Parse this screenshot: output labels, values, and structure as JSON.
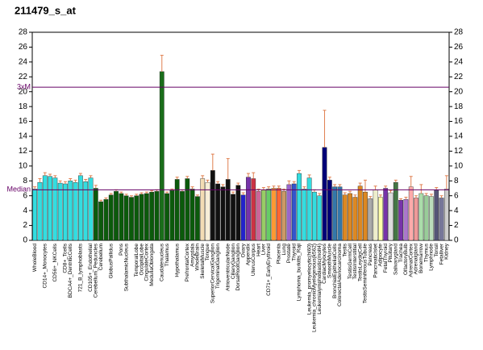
{
  "chart_data": {
    "type": "bar",
    "title": "211479_s_at",
    "categories": [
      "WholeBlood",
      null,
      "CD14+_Monocytes",
      null,
      "CD56+_NKCells",
      null,
      "CD8+_Tcells",
      "BDCA4+_DentriticCells",
      null,
      "721_B_lymphoblasts",
      null,
      "CD105+_Endothelial",
      "Cerebellum_Peduncles",
      "Cerebellum",
      null,
      "GlobusPallidus",
      null,
      "Pons",
      "SubthalamicNucleus",
      null,
      "TemporalLobe",
      "OccipitalLobe",
      "CingulateCortex",
      "MedullaOblongata",
      null,
      "Caudatenucleus",
      "Thalamus",
      null,
      "Hypothalamus",
      null,
      "PrefrontalCortex",
      "Amygdala",
      "WholeBrain",
      "SkeletalMuscle",
      "Tongue",
      "SuperiorCervicalGanglion",
      "TrigeminalGanglion",
      null,
      "AtrioventricularNode",
      "CiliaryGanglion",
      "DorsalRootGanglion",
      "Ovary",
      "Appendix",
      "UterusCorpus",
      "Heart",
      "Liver",
      "CD71+_EarlyErythroid",
      null,
      "Placenta",
      "Lung",
      "Prostate",
      "Thyroid",
      "Lymphoma_burkitts_Raji",
      null,
      "Leukemia_promyelocytic(hl60)",
      "Leukemia_chronicMyelogenous(k562)",
      "Leukemialymphoblastic(molt4)",
      "CardiacMyocytes",
      "SmoothMuscle",
      "BronchialEpithelialCells",
      "ColorectalAdenocarcinoma",
      "Testis",
      "TestisGermCell",
      "TestisInterstitial",
      "TestisLeydigCell",
      "TestisSeminiferousTubule",
      "Pancreas",
      "PancreaticIslet",
      "Adipocyte",
      "FetalThyroid",
      "Pituitary",
      "Salivarygland",
      "Trachea",
      "OlfactoryBulb",
      "AdrenalCortex",
      "Adrenalgland",
      "Bonemarrow",
      "Thymus",
      "Lymphnode",
      "Tonsil",
      "Fetalliver",
      "Kidney"
    ],
    "values": [
      6.9,
      7.8,
      8.7,
      8.6,
      8.4,
      7.7,
      7.6,
      8.0,
      7.8,
      8.7,
      7.9,
      8.4,
      7.0,
      5.2,
      5.5,
      6.1,
      6.6,
      6.3,
      6.0,
      5.8,
      6.0,
      6.2,
      6.3,
      6.5,
      6.6,
      22.7,
      6.3,
      6.7,
      8.2,
      6.6,
      8.3,
      6.9,
      5.9,
      8.3,
      7.8,
      9.4,
      7.6,
      7.2,
      8.2,
      6.2,
      7.4,
      6.1,
      8.5,
      8.3,
      6.6,
      6.8,
      6.9,
      7.0,
      7.0,
      6.6,
      7.5,
      7.6,
      9.0,
      6.9,
      8.4,
      6.5,
      6.0,
      12.5,
      8.1,
      7.2,
      7.2,
      6.1,
      6.3,
      5.8,
      7.3,
      6.5,
      5.6,
      6.8,
      5.8,
      7.0,
      6.4,
      7.8,
      5.4,
      5.5,
      7.2,
      5.7,
      6.3,
      6.0,
      5.9,
      6.8,
      5.7,
      6.9
    ],
    "errors": [
      0.3,
      0.5,
      0.4,
      0.3,
      0.3,
      0.3,
      0.3,
      0.3,
      0.3,
      0.3,
      0.3,
      0.3,
      0.4,
      0.2,
      0.2,
      0.2,
      0.2,
      0.2,
      0.2,
      0.2,
      0.2,
      0.2,
      0.2,
      0.2,
      0.2,
      2.2,
      0.2,
      0.2,
      0.3,
      0.2,
      0.3,
      0.3,
      0.2,
      0.4,
      0.3,
      2.2,
      0.3,
      0.3,
      2.8,
      0.3,
      0.3,
      0.3,
      0.5,
      0.8,
      0.3,
      0.3,
      0.3,
      0.3,
      0.3,
      0.3,
      0.5,
      0.3,
      0.4,
      0.3,
      0.4,
      0.3,
      0.3,
      5.0,
      0.4,
      0.3,
      0.3,
      0.3,
      0.3,
      0.3,
      0.4,
      1.6,
      0.3,
      0.5,
      0.3,
      0.3,
      0.3,
      0.3,
      0.2,
      0.3,
      1.4,
      0.3,
      1.2,
      0.3,
      0.3,
      0.3,
      0.3,
      1.8
    ],
    "colors": [
      "#33dde0",
      "#33dde0",
      "#33dde0",
      "#33dde0",
      "#33dde0",
      "#33dde0",
      "#33dde0",
      "#33dde0",
      "#33dde0",
      "#33dde0",
      "#33dde0",
      "#33dde0",
      "#0b5a0b",
      "#0b5a0b",
      "#0b5a0b",
      "#0b5a0b",
      "#0b5a0b",
      "#0b5a0b",
      "#0b5a0b",
      "#0b5a0b",
      "#0b5a0b",
      "#0b5a0b",
      "#0b5a0b",
      "#0b5a0b",
      "#0b5a0b",
      "#1a6e1a",
      "#0b5a0b",
      "#0b5a0b",
      "#0b5a0b",
      "#0b5a0b",
      "#0b5a0b",
      "#0b5a0b",
      "#0b5a0b",
      "#f3dcb4",
      "#f8efd8",
      "#111111",
      "#111111",
      "#111111",
      "#111111",
      "#111111",
      "#111111",
      "#2222cc",
      "#7733aa",
      "#cc3344",
      "#cc6699",
      "#99cc66",
      "#66cc66",
      "#ff9933",
      "#ff6633",
      "#cc9966",
      "#9966cc",
      "#3355cc",
      "#33dde0",
      "#33dde0",
      "#33dde0",
      "#33dde0",
      "#33dde0",
      "#000077",
      "#000077",
      "#3377aa",
      "#3377aa",
      "#dd8822",
      "#dd8822",
      "#dd8822",
      "#dd8822",
      "#dd8822",
      "#aaaaaa",
      "#eeeecc",
      "#ffffaa",
      "#7733aa",
      "#dddddd",
      "#447744",
      "#7733aa",
      "#aa77cc",
      "#ffaaaa",
      "#ee9999",
      "#aaddaa",
      "#99cc99",
      "#bbddbb",
      "#555577",
      "#777799",
      "#cccccc"
    ],
    "error_color": "#e08050",
    "ylim": [
      0,
      28
    ],
    "yticks": [
      0,
      2,
      4,
      6,
      8,
      10,
      12,
      14,
      16,
      18,
      20,
      22,
      24,
      26,
      28
    ],
    "reference_lines": [
      {
        "label": "Median",
        "value": 6.8
      },
      {
        "label": "3xM",
        "value": 20.6
      }
    ],
    "reference_color": "#660066"
  }
}
